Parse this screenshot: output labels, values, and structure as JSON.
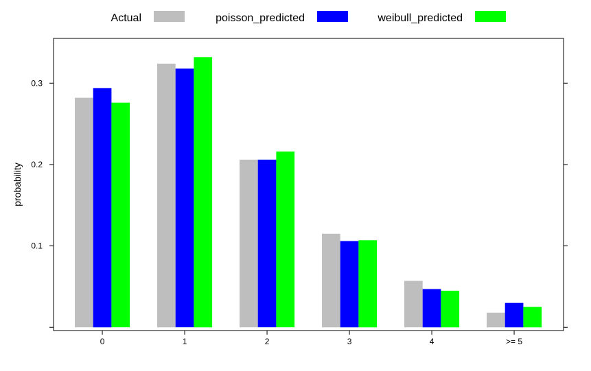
{
  "chart_data": {
    "type": "bar",
    "title": "",
    "xlabel": "",
    "ylabel": "probability",
    "categories": [
      "0",
      "1",
      "2",
      "3",
      "4",
      ">= 5"
    ],
    "ylim": [
      -0.004,
      0.355
    ],
    "yticks": [
      0.1,
      0.2,
      0.3
    ],
    "ytick_labels": [
      "0.1",
      "0.2",
      "0.3"
    ],
    "grid": false,
    "legend_position": "top",
    "series": [
      {
        "name": "Actual",
        "color": "#bebebe",
        "values": [
          0.282,
          0.324,
          0.206,
          0.115,
          0.057,
          0.018
        ]
      },
      {
        "name": "poisson_predicted",
        "color": "#0000ff",
        "values": [
          0.294,
          0.318,
          0.206,
          0.106,
          0.047,
          0.03
        ]
      },
      {
        "name": "weibull_predicted",
        "color": "#00ff00",
        "values": [
          0.276,
          0.332,
          0.216,
          0.107,
          0.045,
          0.025
        ]
      }
    ]
  }
}
